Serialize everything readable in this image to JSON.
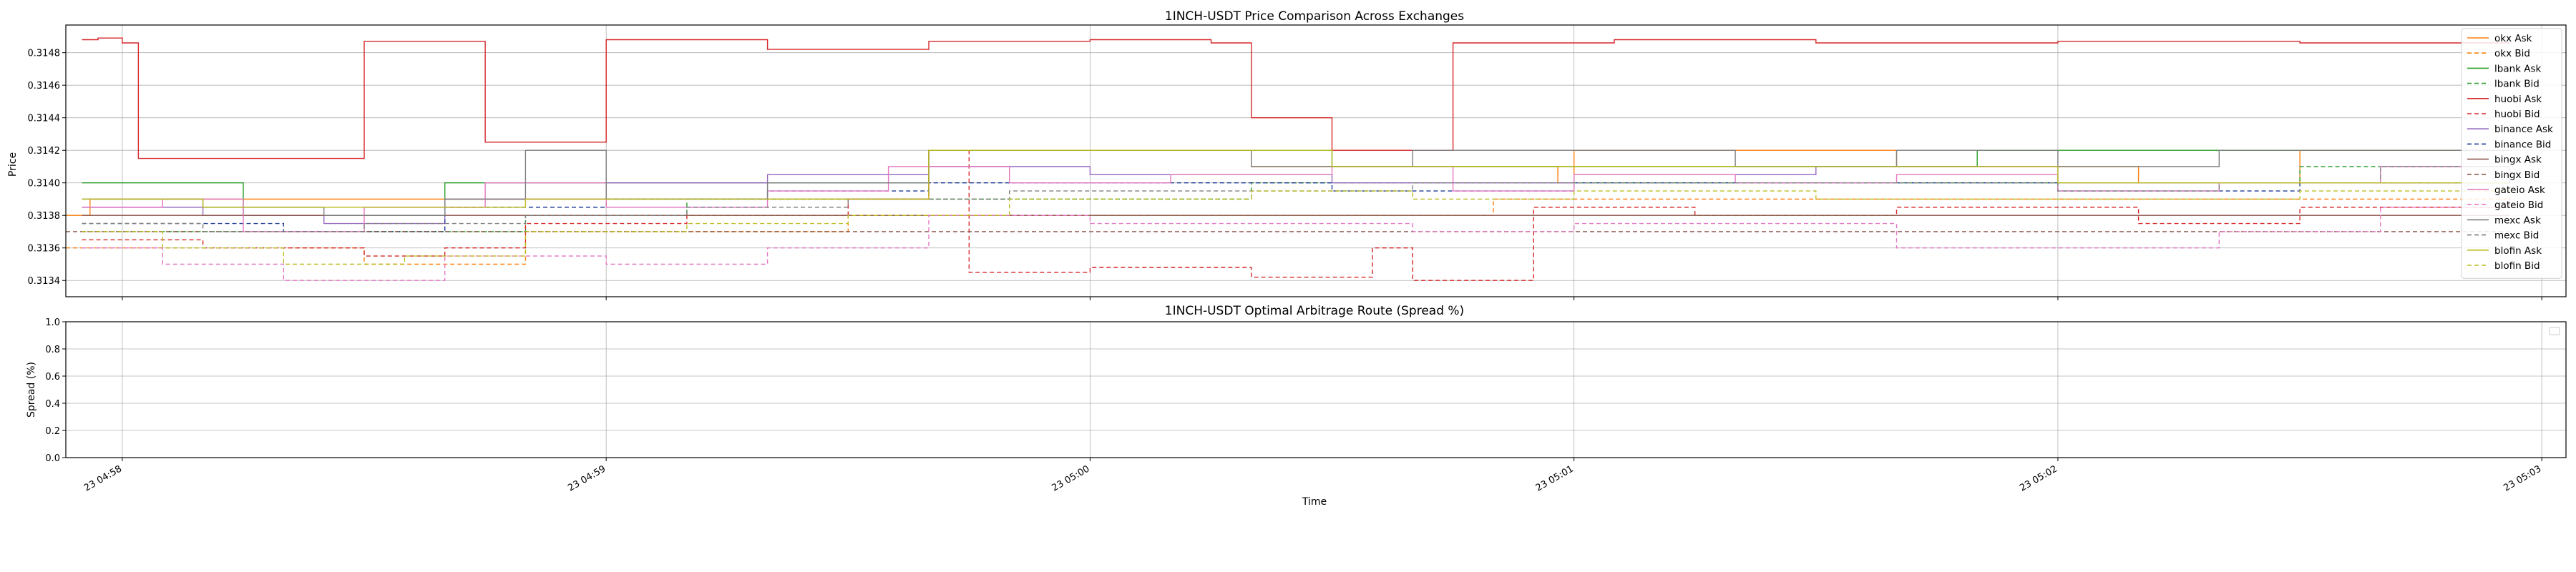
{
  "chart_data": [
    {
      "type": "line",
      "title": "1INCH-USDT Price Comparison Across Exchanges",
      "ylabel": "Price",
      "xlabel": "",
      "ylim": [
        0.3133,
        0.31497
      ],
      "xlim": [
        "04:57:53",
        "05:03:03"
      ],
      "yticks": [
        "0.3134",
        "0.3136",
        "0.3138",
        "0.3140",
        "0.3142",
        "0.3144",
        "0.3146",
        "0.3148"
      ],
      "grid": true,
      "legend_position": "right",
      "series": [
        {
          "name": "okx Ask",
          "color": "#ff7f0e",
          "dash": "solid",
          "x": [
            "04:57:53",
            "04:57:56",
            "04:58:40",
            "04:58:50",
            "04:59:19",
            "04:59:40",
            "04:59:50",
            "05:00:20",
            "05:00:40",
            "05:00:58",
            "05:01:00",
            "05:01:20",
            "05:01:40",
            "05:02:10",
            "05:02:30",
            "05:02:56"
          ],
          "values": [
            0.3138,
            0.3139,
            0.3139,
            0.3139,
            0.3139,
            0.3142,
            0.3142,
            0.3141,
            0.3141,
            0.314,
            0.3142,
            0.3142,
            0.3141,
            0.314,
            0.3142,
            0.3142
          ]
        },
        {
          "name": "okx Bid",
          "color": "#ff7f0e",
          "dash": "dashed",
          "x": [
            "04:57:53",
            "04:58:00",
            "04:58:15",
            "04:58:30",
            "04:58:50",
            "04:59:10",
            "04:59:30",
            "04:59:40",
            "05:00:00",
            "05:00:30",
            "05:00:50",
            "05:01:10",
            "05:01:40",
            "05:02:10",
            "05:02:30",
            "05:02:56"
          ],
          "values": [
            0.3136,
            0.3136,
            0.3136,
            0.3135,
            0.3137,
            0.3137,
            0.3138,
            0.3138,
            0.3138,
            0.3138,
            0.3139,
            0.3139,
            0.3139,
            0.3139,
            0.3139,
            0.3139
          ]
        },
        {
          "name": "lbank Ask",
          "color": "#2ca02c",
          "dash": "solid",
          "x": [
            "04:57:55",
            "04:58:00",
            "04:58:05",
            "04:58:15",
            "04:58:30",
            "04:58:40",
            "04:59:00",
            "04:59:20",
            "04:59:40",
            "05:00:10",
            "05:00:30",
            "05:00:50",
            "05:01:20",
            "05:01:50",
            "05:02:20",
            "05:02:56"
          ],
          "values": [
            0.314,
            0.314,
            0.314,
            0.3138,
            0.3138,
            0.314,
            0.314,
            0.314,
            0.3142,
            0.3142,
            0.3141,
            0.3141,
            0.3141,
            0.3142,
            0.3142,
            0.3142
          ]
        },
        {
          "name": "lbank Bid",
          "color": "#2ca02c",
          "dash": "dashed",
          "x": [
            "04:57:55",
            "04:58:10",
            "04:58:30",
            "04:58:50",
            "04:59:10",
            "04:59:30",
            "04:59:50",
            "05:00:20",
            "05:00:40",
            "05:01:00",
            "05:01:30",
            "05:02:00",
            "05:02:30",
            "05:02:56"
          ],
          "values": [
            0.3137,
            0.3137,
            0.3137,
            0.3138,
            0.3139,
            0.3139,
            0.3139,
            0.314,
            0.314,
            0.314,
            0.314,
            0.314,
            0.3141,
            0.3141
          ]
        },
        {
          "name": "huobi Ask",
          "color": "#d62728",
          "dash": "solid",
          "x": [
            "04:57:55",
            "04:57:57",
            "04:58:00",
            "04:58:02",
            "04:58:30",
            "04:58:45",
            "04:59:00",
            "04:59:20",
            "04:59:40",
            "05:00:00",
            "05:00:15",
            "05:00:20",
            "05:00:30",
            "05:00:45",
            "05:01:05",
            "05:01:30",
            "05:02:00",
            "05:02:30",
            "05:02:56"
          ],
          "values": [
            0.31488,
            0.31489,
            0.31486,
            0.31415,
            0.31487,
            0.31425,
            0.31488,
            0.31482,
            0.31487,
            0.31488,
            0.31486,
            0.3144,
            0.3142,
            0.31486,
            0.31488,
            0.31486,
            0.31487,
            0.31486,
            0.31486
          ]
        },
        {
          "name": "huobi Bid",
          "color": "#d62728",
          "dash": "dashed",
          "x": [
            "04:57:55",
            "04:58:10",
            "04:58:30",
            "04:58:40",
            "04:58:50",
            "04:59:10",
            "04:59:30",
            "04:59:40",
            "04:59:45",
            "05:00:00",
            "05:00:20",
            "05:00:35",
            "05:00:40",
            "05:00:55",
            "05:01:15",
            "05:01:40",
            "05:02:10",
            "05:02:30",
            "05:02:56"
          ],
          "values": [
            0.31365,
            0.3136,
            0.31355,
            0.3136,
            0.31375,
            0.3138,
            0.3139,
            0.3142,
            0.31345,
            0.31348,
            0.31342,
            0.3136,
            0.3134,
            0.31385,
            0.3138,
            0.31385,
            0.31375,
            0.31385,
            0.31395
          ]
        },
        {
          "name": "binance Ask",
          "color": "#9467bd",
          "dash": "solid",
          "x": [
            "04:57:55",
            "04:58:10",
            "04:58:25",
            "04:58:40",
            "04:59:00",
            "04:59:20",
            "04:59:40",
            "05:00:00",
            "05:00:30",
            "05:01:00",
            "05:01:30",
            "05:02:00",
            "05:02:30",
            "05:02:56"
          ],
          "values": [
            0.31385,
            0.3138,
            0.31375,
            0.3139,
            0.314,
            0.31405,
            0.3141,
            0.31405,
            0.314,
            0.31405,
            0.3141,
            0.314,
            0.314,
            0.31405
          ]
        },
        {
          "name": "binance Bid",
          "color": "#1f3a93",
          "dash": "dashed",
          "x": [
            "04:57:55",
            "04:58:20",
            "04:58:40",
            "04:59:00",
            "04:59:20",
            "04:59:40",
            "05:00:00",
            "05:00:30",
            "05:01:00",
            "05:01:30",
            "05:02:00",
            "05:02:30",
            "05:02:56"
          ],
          "values": [
            0.31375,
            0.3137,
            0.31385,
            0.3139,
            0.31395,
            0.314,
            0.314,
            0.31395,
            0.314,
            0.314,
            0.31395,
            0.314,
            0.314
          ]
        },
        {
          "name": "bingx Ask",
          "color": "#8c564b",
          "dash": "solid",
          "x": [
            "04:57:55",
            "04:58:20",
            "04:58:40",
            "04:59:00",
            "04:59:20",
            "04:59:40",
            "05:00:00",
            "05:00:30",
            "05:01:00",
            "05:01:30",
            "05:02:00",
            "05:02:30",
            "05:02:56"
          ],
          "values": [
            0.3138,
            0.3138,
            0.3138,
            0.3138,
            0.3138,
            0.3138,
            0.3138,
            0.3138,
            0.3138,
            0.3138,
            0.3138,
            0.3138,
            0.3138
          ]
        },
        {
          "name": "bingx Bid",
          "color": "#8c564b",
          "dash": "dashed",
          "x": [
            "04:57:53",
            "04:58:20",
            "04:58:40",
            "04:59:00",
            "04:59:20",
            "04:59:40",
            "05:00:00",
            "05:00:30",
            "05:01:00",
            "05:01:30",
            "05:02:00",
            "05:02:30",
            "05:02:56"
          ],
          "values": [
            0.3137,
            0.3137,
            0.3137,
            0.3137,
            0.3137,
            0.3137,
            0.3137,
            0.3137,
            0.3137,
            0.3137,
            0.3137,
            0.3137,
            0.3137
          ]
        },
        {
          "name": "gateio Ask",
          "color": "#e377c2",
          "dash": "solid",
          "x": [
            "04:57:55",
            "04:58:05",
            "04:58:15",
            "04:58:30",
            "04:58:45",
            "04:59:00",
            "04:59:20",
            "04:59:35",
            "04:59:50",
            "05:00:10",
            "05:00:30",
            "05:00:45",
            "05:01:00",
            "05:01:20",
            "05:01:40",
            "05:02:00",
            "05:02:20",
            "05:02:40",
            "05:02:56"
          ],
          "values": [
            0.31385,
            0.3139,
            0.3137,
            0.31385,
            0.314,
            0.31385,
            0.31395,
            0.3141,
            0.314,
            0.31405,
            0.3141,
            0.31395,
            0.31405,
            0.314,
            0.31405,
            0.31395,
            0.314,
            0.3141,
            0.31405
          ]
        },
        {
          "name": "gateio Bid",
          "color": "#e377c2",
          "dash": "dashed",
          "x": [
            "04:57:55",
            "04:58:05",
            "04:58:20",
            "04:58:40",
            "04:59:00",
            "04:59:20",
            "04:59:40",
            "05:00:00",
            "05:00:20",
            "05:00:40",
            "05:01:00",
            "05:01:20",
            "05:01:40",
            "05:02:00",
            "05:02:20",
            "05:02:40",
            "05:02:56"
          ],
          "values": [
            0.3136,
            0.3135,
            0.3134,
            0.31355,
            0.3135,
            0.3136,
            0.3138,
            0.31375,
            0.31375,
            0.3137,
            0.31375,
            0.31375,
            0.3136,
            0.3136,
            0.3137,
            0.31385,
            0.3139
          ]
        },
        {
          "name": "mexc Ask",
          "color": "#7f7f7f",
          "dash": "solid",
          "x": [
            "04:57:55",
            "04:58:10",
            "04:58:25",
            "04:58:40",
            "04:58:50",
            "04:59:00",
            "04:59:20",
            "04:59:40",
            "05:00:00",
            "05:00:20",
            "05:00:40",
            "05:01:00",
            "05:01:20",
            "05:01:40",
            "05:02:00",
            "05:02:20",
            "05:02:40",
            "05:02:56"
          ],
          "values": [
            0.3139,
            0.31385,
            0.3138,
            0.3139,
            0.3142,
            0.3139,
            0.314,
            0.3142,
            0.3142,
            0.3141,
            0.3142,
            0.3142,
            0.3141,
            0.3142,
            0.3141,
            0.3142,
            0.3142,
            0.3142
          ]
        },
        {
          "name": "mexc Bid",
          "color": "#7f7f7f",
          "dash": "dashed",
          "x": [
            "04:57:55",
            "04:58:10",
            "04:58:30",
            "04:58:50",
            "04:59:10",
            "04:59:30",
            "04:59:50",
            "05:00:20",
            "05:00:40",
            "05:01:00",
            "05:01:30",
            "05:02:00",
            "05:02:20",
            "05:02:40",
            "05:02:56"
          ],
          "values": [
            0.31375,
            0.3137,
            0.31375,
            0.3138,
            0.31385,
            0.3139,
            0.31395,
            0.31395,
            0.314,
            0.314,
            0.314,
            0.31395,
            0.314,
            0.3141,
            0.3141
          ]
        },
        {
          "name": "blofin Ask",
          "color": "#bcbd22",
          "dash": "solid",
          "x": [
            "04:57:55",
            "04:58:10",
            "04:58:30",
            "04:58:50",
            "04:59:10",
            "04:59:30",
            "04:59:40",
            "05:00:00",
            "05:00:30",
            "05:01:00",
            "05:01:30",
            "05:02:00",
            "05:02:20",
            "05:02:56"
          ],
          "values": [
            0.3139,
            0.31385,
            0.31385,
            0.3139,
            0.3139,
            0.3139,
            0.3142,
            0.3142,
            0.3141,
            0.3141,
            0.3141,
            0.314,
            0.314,
            0.314
          ]
        },
        {
          "name": "blofin Bid",
          "color": "#bcbd22",
          "dash": "dashed",
          "x": [
            "04:57:55",
            "04:58:05",
            "04:58:20",
            "04:58:35",
            "04:58:50",
            "04:59:10",
            "04:59:30",
            "04:59:50",
            "05:00:20",
            "05:00:40",
            "05:01:00",
            "05:01:30",
            "05:02:00",
            "05:02:30",
            "05:02:56"
          ],
          "values": [
            0.3137,
            0.3136,
            0.3135,
            0.31355,
            0.3137,
            0.31375,
            0.3138,
            0.3139,
            0.31395,
            0.3139,
            0.31395,
            0.3139,
            0.3139,
            0.31395,
            0.31395
          ]
        }
      ]
    },
    {
      "type": "line",
      "title": "1INCH-USDT Optimal Arbitrage Route (Spread %)",
      "ylabel": "Spread (%)",
      "xlabel": "Time",
      "ylim": [
        0.0,
        1.0
      ],
      "yticks": [
        "0.0",
        "0.2",
        "0.4",
        "0.6",
        "0.8",
        "1.0"
      ],
      "xticks": [
        "23 04:58",
        "23 04:59",
        "23 05:00",
        "23 05:01",
        "23 05:02",
        "23 05:03"
      ],
      "grid": true,
      "series": []
    }
  ]
}
